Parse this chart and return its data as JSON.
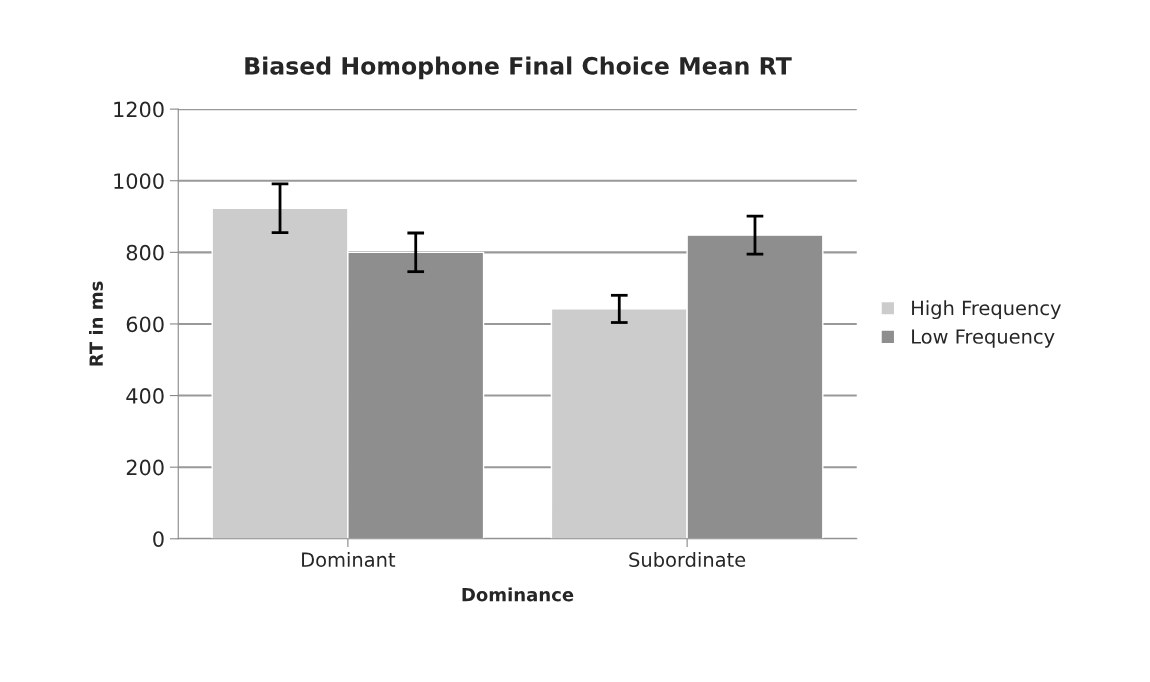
{
  "chart_data": {
    "type": "bar",
    "title": "Biased Homophone Final Choice Mean RT",
    "xlabel": "Dominance",
    "ylabel": "RT in ms",
    "categories": [
      "Dominant",
      "Subordinate"
    ],
    "series": [
      {
        "name": "High Frequency",
        "color": "#cccccc",
        "values": [
          923,
          642
        ],
        "errors": [
          68,
          38
        ]
      },
      {
        "name": "Low Frequency",
        "color": "#8e8e8e",
        "values": [
          800,
          848
        ],
        "errors": [
          54,
          53
        ]
      }
    ],
    "ylim": [
      0,
      1200
    ],
    "yticks": [
      0,
      200,
      400,
      600,
      800,
      1000,
      1200
    ],
    "grid": "y",
    "legend": "right"
  }
}
